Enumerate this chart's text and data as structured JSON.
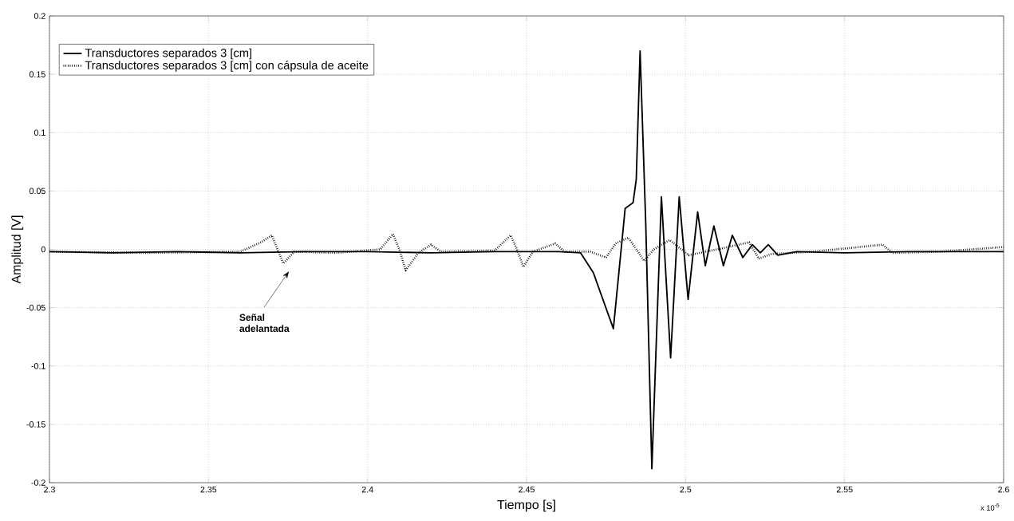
{
  "chart_data": {
    "type": "line",
    "xlabel": "Tiempo [s]",
    "ylabel": "Amplitud [V]",
    "xlim": [
      2.3,
      2.6
    ],
    "ylim": [
      -0.2,
      0.2
    ],
    "xticks": [
      2.3,
      2.35,
      2.4,
      2.45,
      2.5,
      2.55,
      2.6
    ],
    "yticks": [
      -0.2,
      -0.15,
      -0.1,
      -0.05,
      0,
      0.05,
      0.1,
      0.15,
      0.2
    ],
    "grid": true,
    "legend": "top left",
    "annotations": [
      "Señal adelantada",
      "x 10$^{-5}$"
    ],
    "series": [
      {
        "name": "Transductores separados 3 [cm]",
        "color": "#000000",
        "line_style": "solid",
        "x": [
          2.3,
          2.32,
          2.34,
          2.36,
          2.38,
          2.4,
          2.42,
          2.44,
          2.46,
          2.467,
          2.471,
          2.4773,
          2.481,
          2.4835,
          2.4845,
          2.4857,
          2.4875,
          2.4894,
          2.4924,
          2.4953,
          2.498,
          2.5008,
          2.5038,
          2.5062,
          2.5089,
          2.5119,
          2.5147,
          2.518,
          2.521,
          2.5235,
          2.526,
          2.529,
          2.535,
          2.55,
          2.57,
          2.6
        ],
        "values": [
          -0.002,
          -0.003,
          -0.002,
          -0.003,
          -0.002,
          -0.002,
          -0.003,
          -0.002,
          -0.002,
          -0.003,
          -0.02,
          -0.068,
          0.035,
          0.04,
          0.06,
          0.17,
          0.02,
          -0.188,
          0.045,
          -0.093,
          0.045,
          -0.043,
          0.032,
          -0.014,
          0.02,
          -0.014,
          0.012,
          -0.007,
          0.004,
          -0.003,
          0.004,
          -0.005,
          -0.002,
          -0.003,
          -0.002,
          -0.002
        ]
      },
      {
        "name": "Transductores separados 3 [cm] con cápsula de aceite",
        "color": "#000000",
        "line_style": "dotted",
        "x": [
          2.3,
          2.33,
          2.36,
          2.3665,
          2.3699,
          2.3717,
          2.3735,
          2.377,
          2.39,
          2.404,
          2.408,
          2.41,
          2.412,
          2.416,
          2.42,
          2.423,
          2.44,
          2.445,
          2.447,
          2.449,
          2.452,
          2.459,
          2.462,
          2.47,
          2.475,
          2.478,
          2.482,
          2.487,
          2.49,
          2.495,
          2.501,
          2.51,
          2.52,
          2.523,
          2.527,
          2.54,
          2.562,
          2.565,
          2.58,
          2.6
        ],
        "values": [
          -0.002,
          -0.003,
          -0.002,
          0.006,
          0.012,
          0.0,
          -0.012,
          -0.002,
          -0.003,
          0.0,
          0.013,
          0.0,
          -0.018,
          -0.003,
          0.004,
          -0.002,
          -0.001,
          0.012,
          0.0,
          -0.015,
          -0.002,
          0.005,
          -0.002,
          -0.002,
          -0.007,
          0.005,
          0.01,
          -0.01,
          0.0,
          0.008,
          -0.005,
          0.0,
          0.006,
          -0.008,
          -0.004,
          -0.002,
          0.004,
          -0.003,
          -0.002,
          0.002
        ]
      }
    ]
  }
}
